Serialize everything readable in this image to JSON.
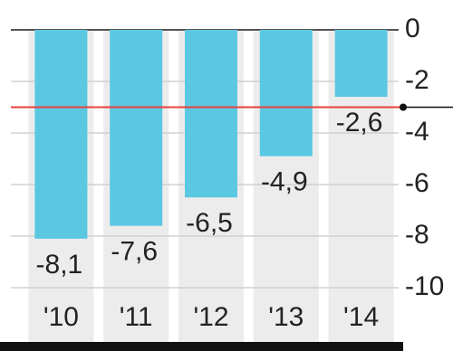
{
  "chart_data": {
    "type": "bar",
    "categories": [
      "'10",
      "'11",
      "'12",
      "'13",
      "'14"
    ],
    "values": [
      -8.1,
      -7.6,
      -6.5,
      -4.9,
      -2.6
    ],
    "value_labels": [
      "-8,1",
      "-7,6",
      "-6,5",
      "-4,9",
      "-2,6"
    ],
    "color": "#5bc8e2",
    "ylim": [
      0,
      -10
    ],
    "yticks": [
      0,
      -2,
      -4,
      -6,
      -8,
      -10
    ],
    "grid": true,
    "reference_line": {
      "value": -3,
      "color": "#e8413c"
    }
  }
}
